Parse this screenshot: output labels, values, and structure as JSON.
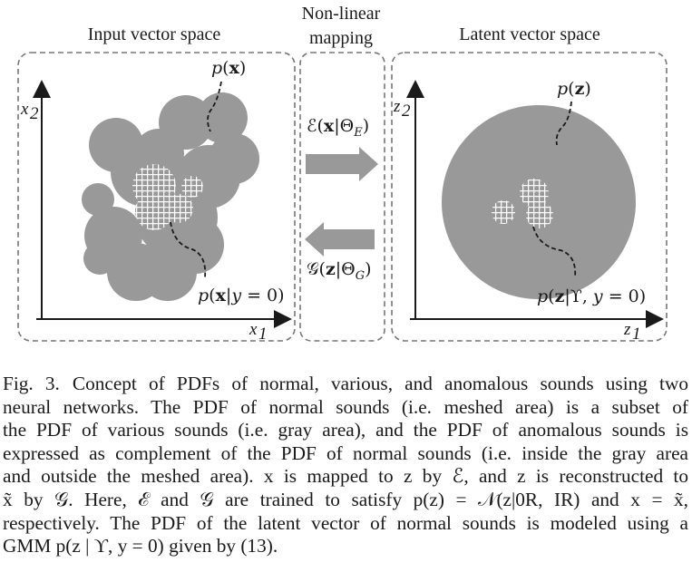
{
  "figure": {
    "panel_titles": {
      "input": "Input vector space",
      "mapping_line1": "Non-linear",
      "mapping_line2": "mapping",
      "latent": "Latent vector space"
    },
    "labels": {
      "px": "p(x)",
      "px_normal": "p(x|y = 0)",
      "pz": "p(z)",
      "pz_normal": "p(z|ϒ, y = 0)",
      "encoder": "ℰ(x|Θ_E)",
      "decoder": "𝒢(z|Θ_G)",
      "x1": "x1",
      "x2": "x2",
      "z1": "z1",
      "z2": "z2"
    },
    "colors": {
      "gray_area": "#999999",
      "mesh": "#ffffff",
      "frame": "#777777"
    }
  },
  "caption": {
    "label": "Fig. 3.",
    "lines": [
      "Concept of PDFs of normal, various, and anomalous sounds using two",
      "neural networks. The PDF of normal sounds (i.e. meshed area) is a subset of",
      "the PDF of various sounds (i.e. gray area), and the PDF of anomalous sounds is",
      "expressed as complement of the PDF of normal sounds (i.e. inside the gray area",
      "and outside the meshed area). x is mapped to z by ℰ, and z is reconstructed to",
      "x̃ by 𝒢. Here, ℰ and 𝒢 are trained to satisfy p(z) = 𝒩(z|0R, IR) and x = x̃,",
      "respectively. The PDF of the latent vector of normal sounds is modeled using a",
      "GMM p(z | ϒ, y = 0) given by (13)."
    ]
  }
}
